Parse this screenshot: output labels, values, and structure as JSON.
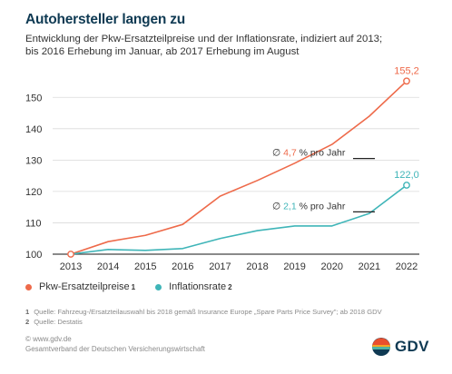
{
  "header": {
    "title": "Autohersteller langen zu",
    "subtitle_line1": "Entwicklung der Pkw-Ersatzteilpreise und der Inflationsrate, indiziert auf 2013;",
    "subtitle_line2": "bis 2016 Erhebung im Januar, ab 2017 Erhebung im August"
  },
  "chart_data": {
    "type": "line",
    "title": "Autohersteller langen zu",
    "x": [
      2013,
      2014,
      2015,
      2016,
      2017,
      2018,
      2019,
      2020,
      2021,
      2022
    ],
    "xlim": [
      2013,
      2022
    ],
    "ylim": [
      100,
      155
    ],
    "yticks": [
      100,
      110,
      120,
      130,
      140,
      150
    ],
    "grid": true,
    "series": [
      {
        "name": "Pkw-Ersatzteilpreise",
        "footnote": "1",
        "color": "#ee6a4a",
        "values": [
          100.0,
          104.0,
          106.0,
          109.5,
          118.5,
          123.5,
          129.0,
          135.0,
          144.0,
          155.2
        ],
        "end_label": "155,2",
        "annotation": {
          "symbol": "∅",
          "value": "4,7",
          "text": "% pro Jahr"
        }
      },
      {
        "name": "Inflationsrate",
        "footnote": "2",
        "color": "#3fb5b8",
        "values": [
          100.0,
          101.5,
          101.2,
          101.8,
          105.0,
          107.5,
          109.0,
          109.0,
          113.0,
          122.0
        ],
        "end_label": "122,0",
        "annotation": {
          "symbol": "∅",
          "value": "2,1",
          "text": "% pro Jahr"
        }
      }
    ]
  },
  "footnotes": [
    {
      "num": "1",
      "text": "Quelle: Fahrzeug-/Ersatzteilauswahl bis 2018 gemäß Insurance Europe „Spare Parts Price Survey\"; ab 2018 GDV"
    },
    {
      "num": "2",
      "text": "Quelle: Destatis"
    }
  ],
  "source": {
    "url": "© www.gdv.de",
    "org": "Gesamtverband der Deutschen Versicherungswirtschaft"
  },
  "logo": {
    "text": "GDV",
    "colors": [
      "#e94f2e",
      "#f5a623",
      "#4fb3a4",
      "#0f3a53"
    ]
  }
}
